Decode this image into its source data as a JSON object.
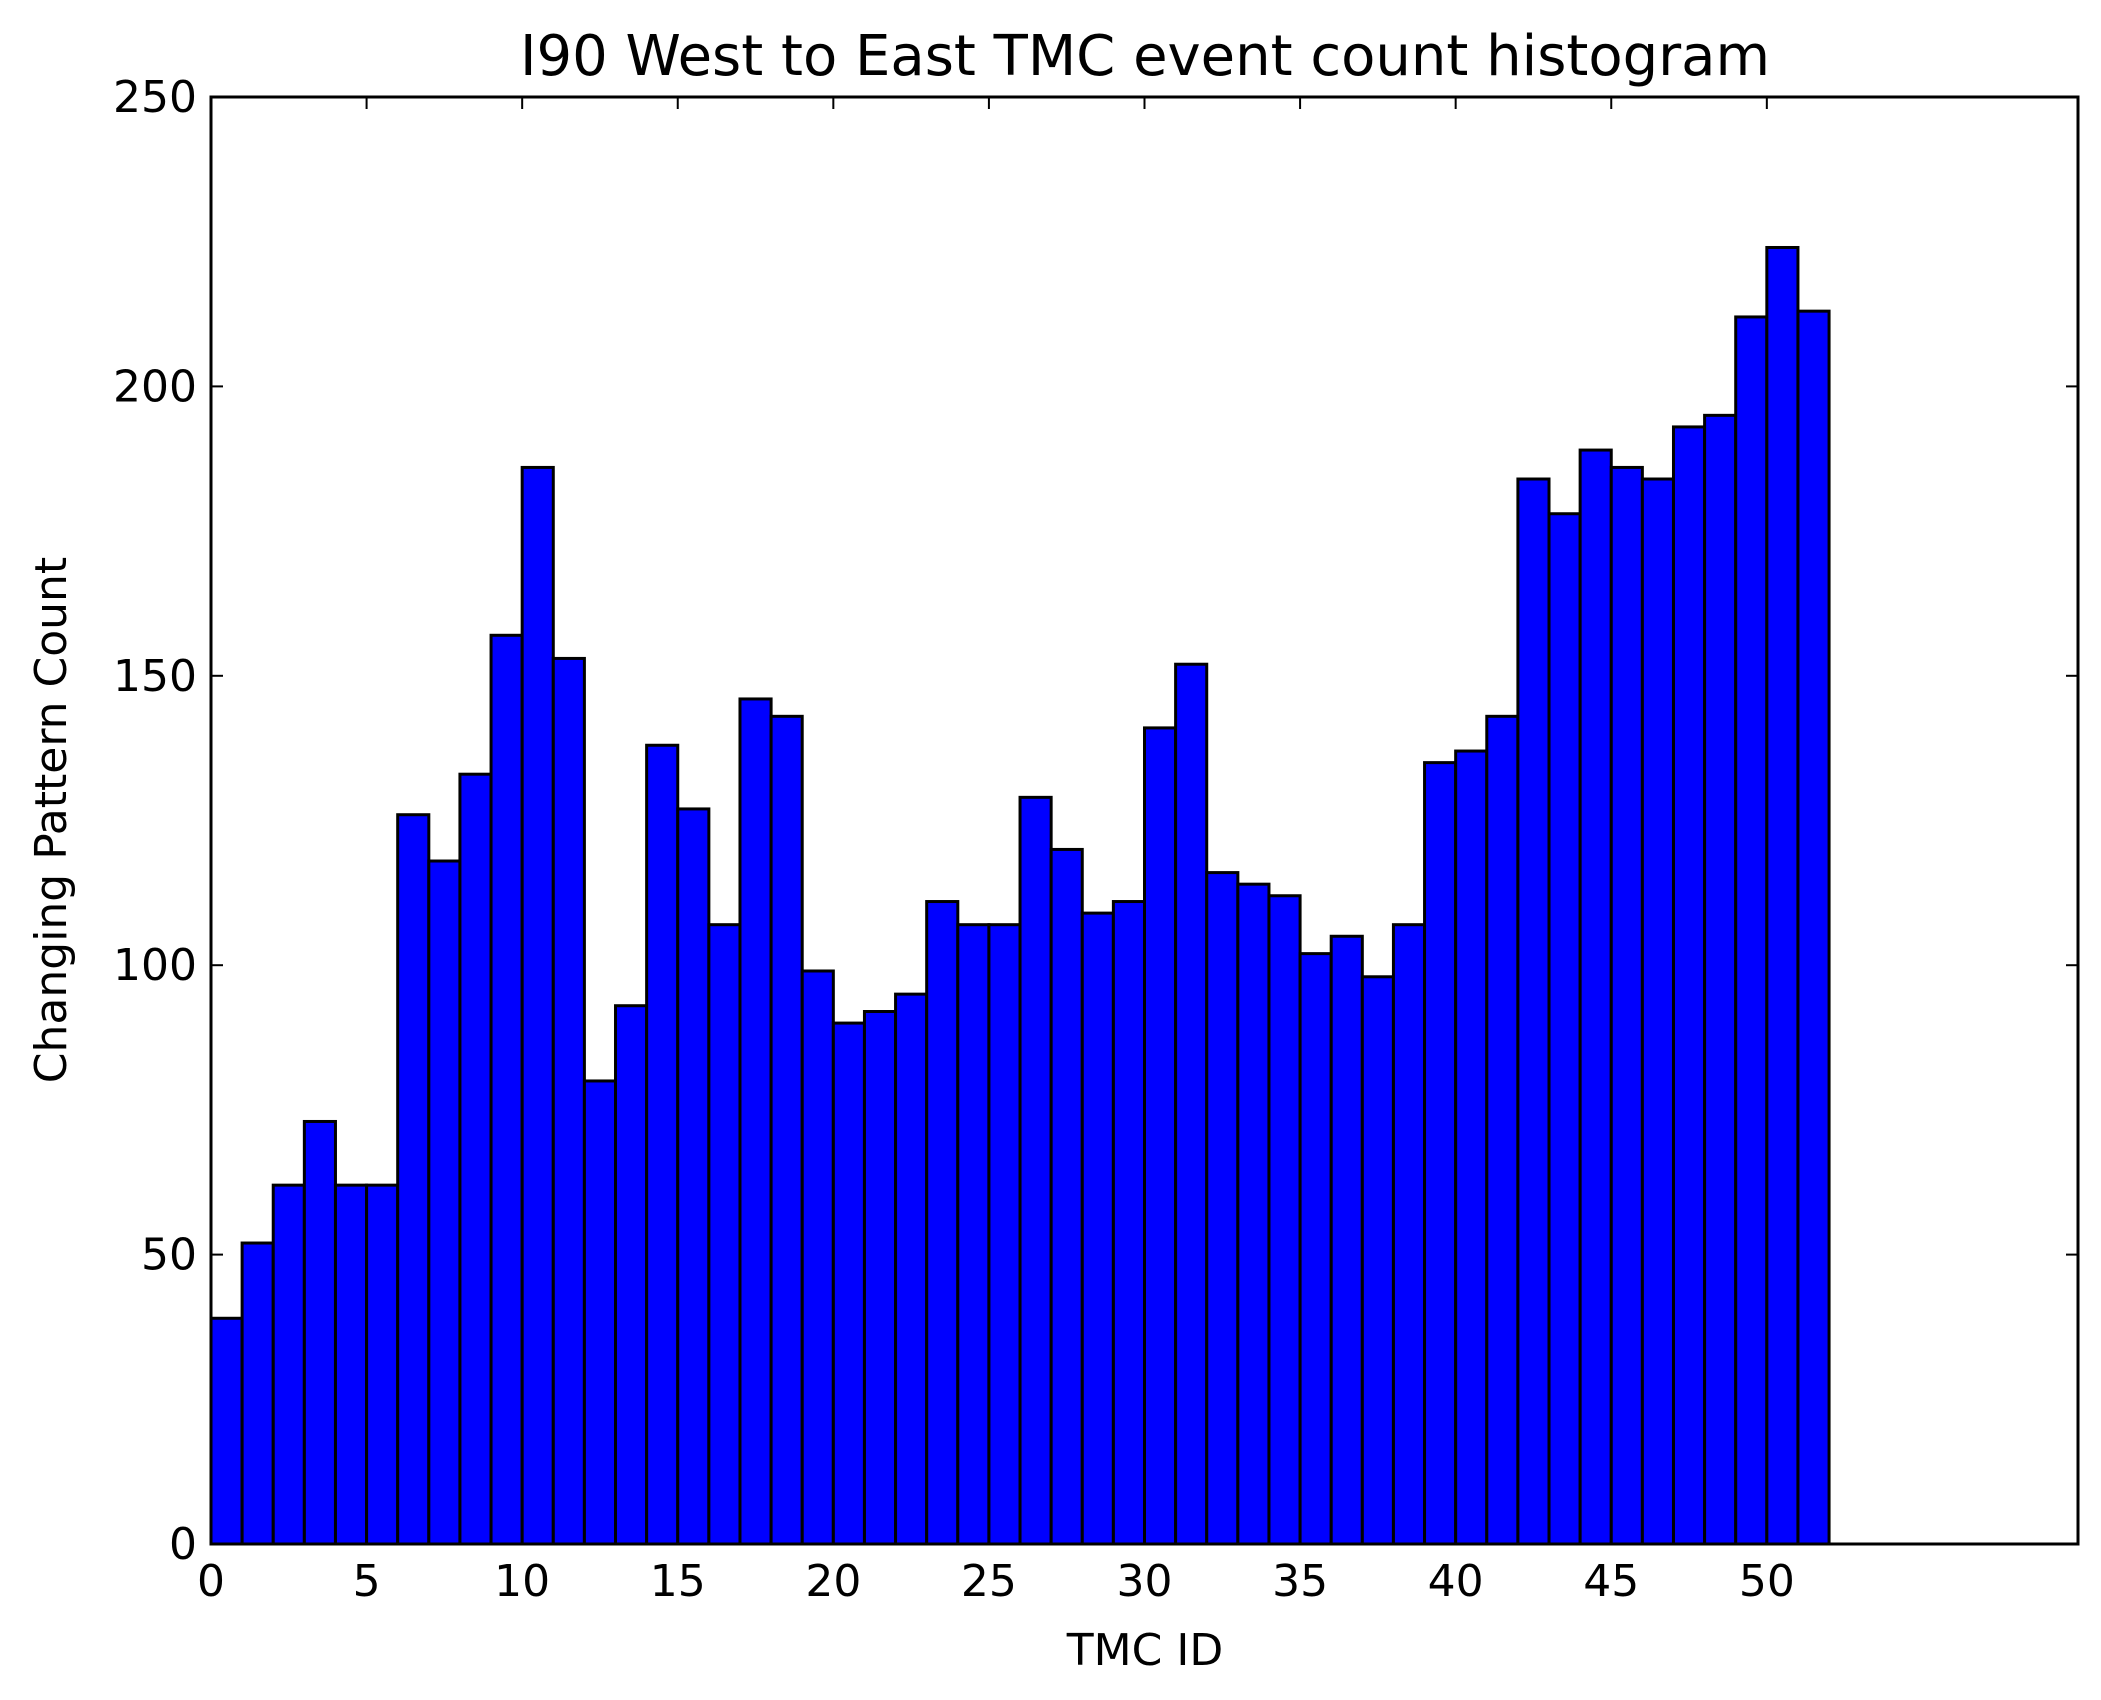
{
  "chart_data": {
    "type": "bar",
    "title": "I90 West to East TMC event count histogram",
    "xlabel": "TMC ID",
    "ylabel": "Changing Pattern Count",
    "xlim": [
      0,
      60
    ],
    "ylim": [
      0,
      250
    ],
    "xticks": [
      0,
      5,
      10,
      15,
      20,
      25,
      30,
      35,
      40,
      45,
      50
    ],
    "yticks": [
      0,
      50,
      100,
      150,
      200,
      250
    ],
    "bin_edges_start": 0,
    "bin_width": 1,
    "values": [
      39,
      52,
      62,
      73,
      62,
      62,
      126,
      118,
      133,
      157,
      186,
      153,
      80,
      93,
      138,
      127,
      107,
      146,
      143,
      99,
      90,
      92,
      95,
      111,
      107,
      107,
      129,
      120,
      109,
      111,
      141,
      152,
      116,
      114,
      112,
      102,
      105,
      98,
      107,
      135,
      137,
      143,
      184,
      178,
      189,
      186,
      184,
      193,
      195,
      212,
      224,
      213
    ],
    "bar_color": "#0000ff",
    "grid": false
  }
}
